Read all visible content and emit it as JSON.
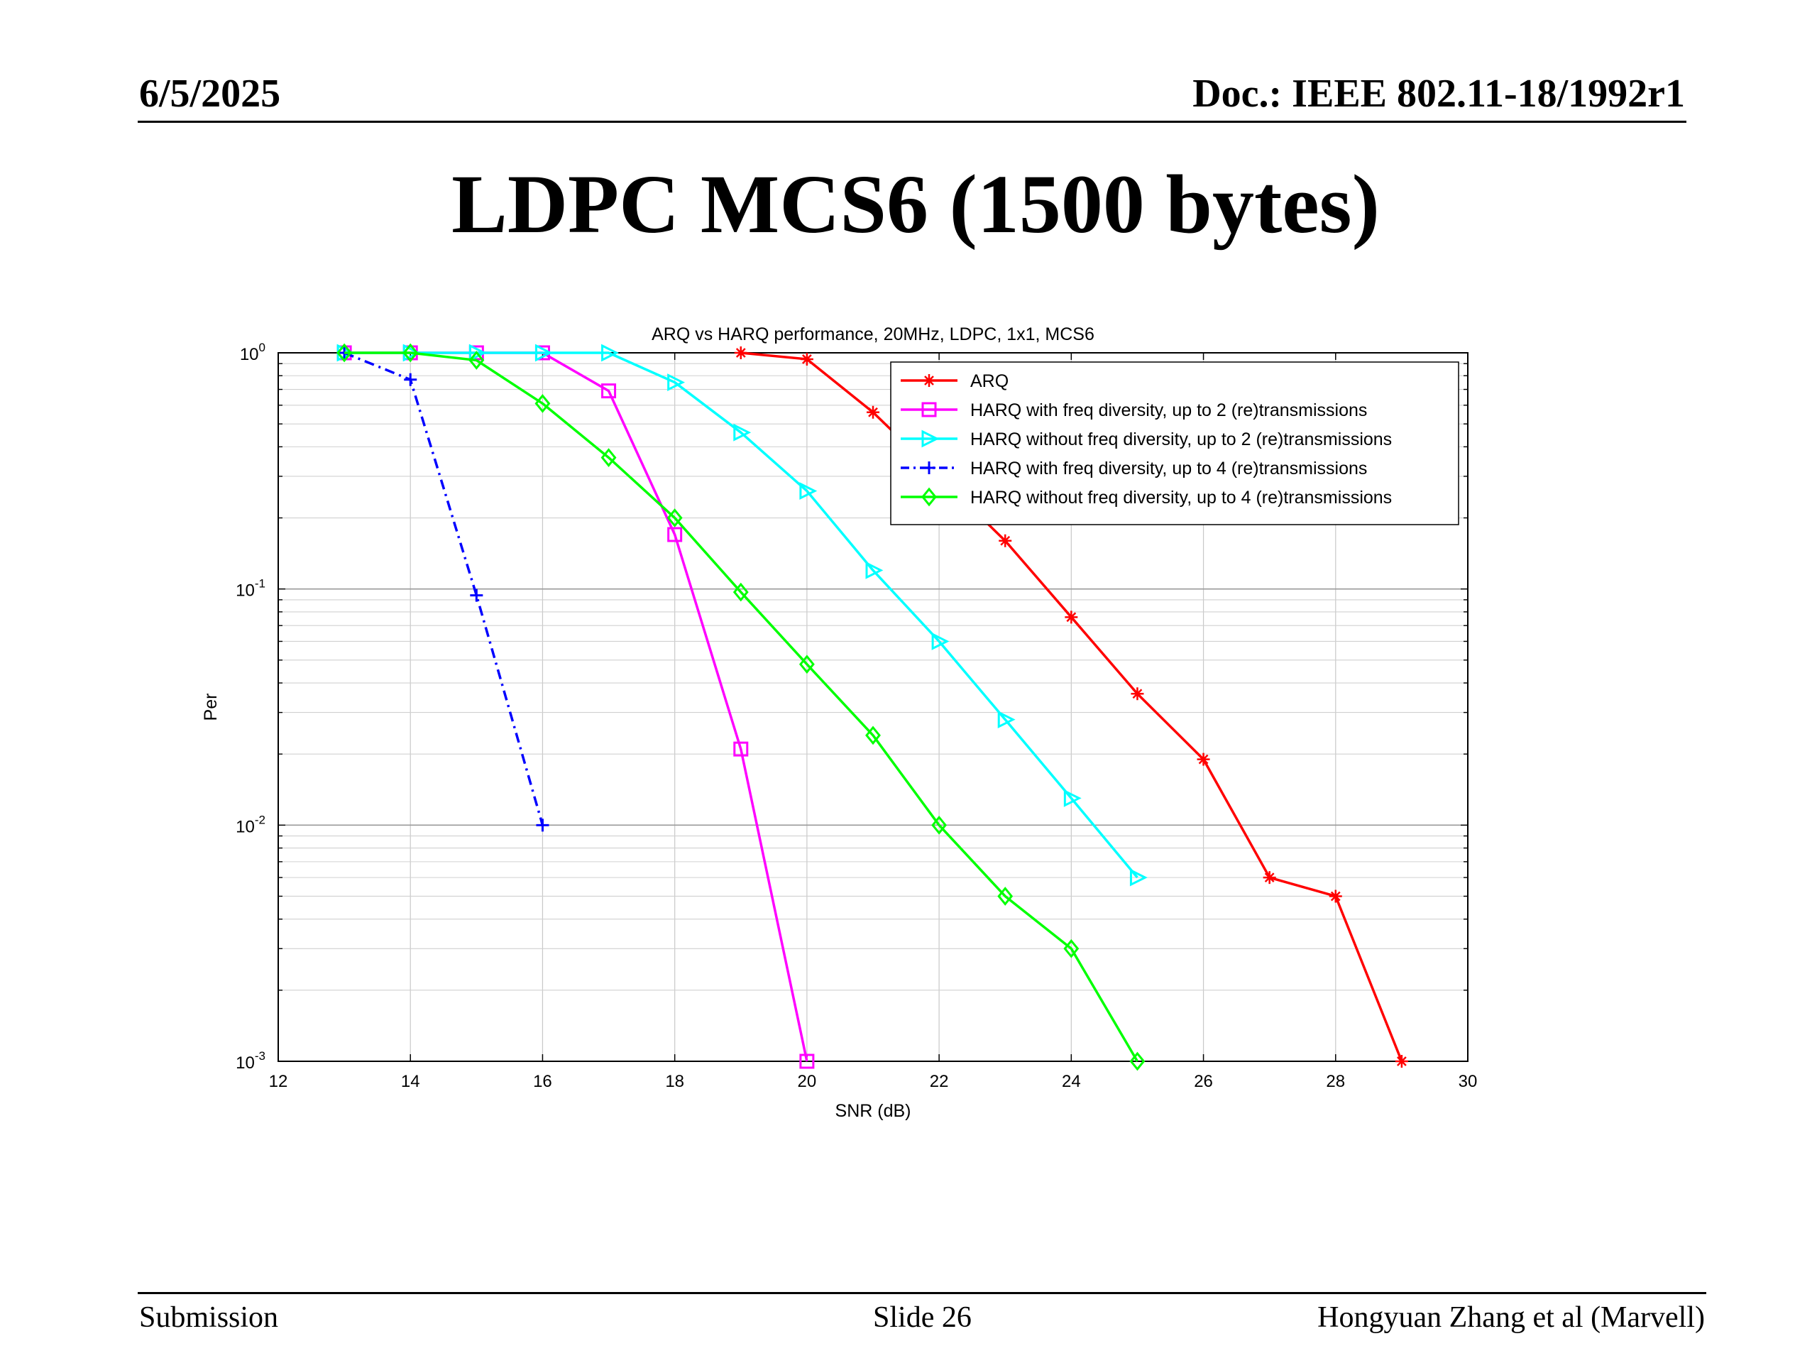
{
  "header": {
    "date": "6/5/2025",
    "doc": "Doc.: IEEE 802.11-18/1992r1"
  },
  "slide_title": "LDPC MCS6 (1500 bytes)",
  "footer": {
    "left": "Submission",
    "center": "Slide 26",
    "right": "Hongyuan Zhang et al (Marvell)"
  },
  "chart_data": {
    "type": "line",
    "title": "ARQ vs HARQ performance, 20MHz, LDPC, 1x1, MCS6",
    "xlabel": "SNR (dB)",
    "ylabel": "Per",
    "xlim": [
      12,
      30
    ],
    "ylim": [
      0.001,
      1
    ],
    "yscale": "log",
    "grid": true,
    "legend_position": "top-right",
    "x_ticks": [
      "12",
      "14",
      "16",
      "18",
      "20",
      "22",
      "24",
      "26",
      "28",
      "30"
    ],
    "y_ticks": [
      {
        "base": "10",
        "exp": "0"
      },
      {
        "base": "10",
        "exp": "-1"
      },
      {
        "base": "10",
        "exp": "-2"
      },
      {
        "base": "10",
        "exp": "-3"
      }
    ],
    "series": [
      {
        "name": "ARQ",
        "color": "#ff0000",
        "marker": "star",
        "dash": "solid",
        "x": [
          19,
          20,
          21,
          22,
          23,
          24,
          25,
          26,
          27,
          28,
          29
        ],
        "y": [
          1.0,
          0.94,
          0.56,
          0.3,
          0.16,
          0.076,
          0.036,
          0.019,
          0.006,
          0.005,
          0.001
        ]
      },
      {
        "name": "HARQ with freq diversity, up to 2 (re)transmissions",
        "color": "#ff00ff",
        "marker": "square",
        "dash": "solid",
        "x": [
          13,
          14,
          15,
          16,
          17,
          18,
          19,
          20
        ],
        "y": [
          1.0,
          1.0,
          1.0,
          1.0,
          0.69,
          0.17,
          0.021,
          0.001
        ]
      },
      {
        "name": "HARQ without freq diversity, up to 2 (re)transmissions",
        "color": "#00ffff",
        "marker": "triangle-right",
        "dash": "solid",
        "x": [
          13,
          14,
          15,
          16,
          17,
          18,
          19,
          20,
          21,
          22,
          23,
          24,
          25
        ],
        "y": [
          1.0,
          1.0,
          1.0,
          1.0,
          1.0,
          0.75,
          0.46,
          0.26,
          0.12,
          0.06,
          0.028,
          0.013,
          0.006
        ]
      },
      {
        "name": "HARQ with freq diversity, up to 4 (re)transmissions",
        "color": "#0000ff",
        "marker": "plus",
        "dash": "dashdot",
        "x": [
          13,
          14,
          15,
          16
        ],
        "y": [
          1.0,
          0.77,
          0.094,
          0.01
        ]
      },
      {
        "name": "HARQ without freq diversity, up to 4 (re)transmissions",
        "color": "#00ff00",
        "marker": "diamond",
        "dash": "solid",
        "x": [
          13,
          14,
          15,
          16,
          17,
          18,
          19,
          20,
          21,
          22,
          23,
          24,
          25
        ],
        "y": [
          1.0,
          1.0,
          0.93,
          0.61,
          0.36,
          0.2,
          0.097,
          0.048,
          0.024,
          0.01,
          0.005,
          0.003,
          0.001
        ]
      }
    ]
  }
}
